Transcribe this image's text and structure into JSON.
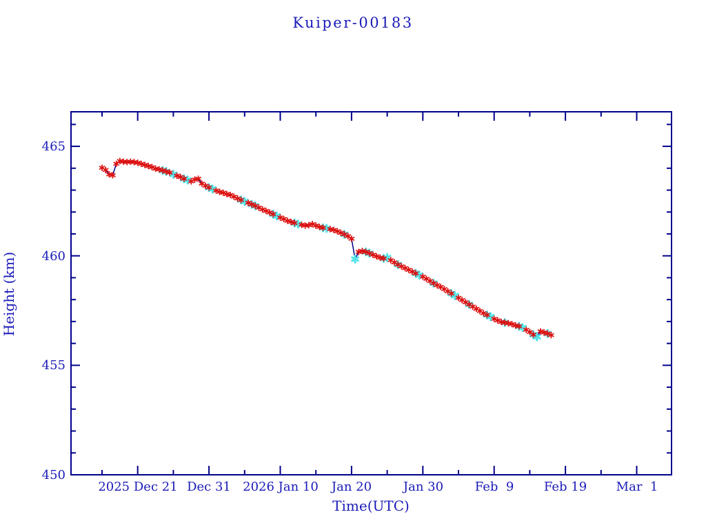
{
  "title": "Kuiper-00183",
  "colors": {
    "text_blue": "#1a1ab8",
    "frame_navy": "#00008b",
    "line_navy": "#00008b",
    "marker_red": "#dd1111",
    "marker_cyan": "#52e4e8",
    "background": "#ffffff"
  },
  "chart_data": {
    "type": "line",
    "title": "Kuiper-00183",
    "xlabel": "Time(UTC)",
    "ylabel": "Height (km)",
    "grid": false,
    "legend": "none",
    "x_unit": "days since 2025-12-16 00:00 UTC",
    "x_tick_labels": [
      "2025 Dec 21",
      "Dec 31",
      "2026 Jan 10",
      "Jan 20",
      "Jan 30",
      "Feb  9",
      "Feb 19",
      "Mar  1"
    ],
    "x_major_tick_days": [
      5,
      15,
      25,
      35,
      45,
      55,
      65,
      75
    ],
    "x_minor_tick_days": [
      0,
      10,
      20,
      30,
      40,
      50,
      60,
      70
    ],
    "xlim_days": [
      -4.35,
      79.9
    ],
    "y_tick_labels": [
      "465",
      "460",
      "455",
      "450"
    ],
    "y_major_ticks": [
      465,
      460,
      455,
      450
    ],
    "y_minor_step": 1,
    "ylim": [
      450,
      466.58
    ],
    "marker_legend": {
      "r": "red asterisk (fitted/observed)",
      "c": "cyan marker only",
      "b": "cyan under red"
    },
    "points_format": "[days_since_2025-12-16_UTC, height_km, marker]",
    "points": [
      [
        0.0,
        464.02,
        "r"
      ],
      [
        0.5,
        463.92,
        "r"
      ],
      [
        1.0,
        463.72,
        "r"
      ],
      [
        1.5,
        463.68,
        "r"
      ],
      [
        2.0,
        464.2,
        "r"
      ],
      [
        2.5,
        464.33,
        "r"
      ],
      [
        3.0,
        464.3,
        "r"
      ],
      [
        3.5,
        464.28,
        "r"
      ],
      [
        4.0,
        464.3,
        "r"
      ],
      [
        4.5,
        464.28,
        "r"
      ],
      [
        5.0,
        464.25,
        "r"
      ],
      [
        5.5,
        464.2,
        "r"
      ],
      [
        6.0,
        464.15,
        "r"
      ],
      [
        6.5,
        464.1,
        "r"
      ],
      [
        7.0,
        464.05,
        "r"
      ],
      [
        7.5,
        463.98,
        "r"
      ],
      [
        8.0,
        463.95,
        "r"
      ],
      [
        8.5,
        463.9,
        "b"
      ],
      [
        9.0,
        463.85,
        "b"
      ],
      [
        9.5,
        463.8,
        "r"
      ],
      [
        10.0,
        463.72,
        "c"
      ],
      [
        10.5,
        463.66,
        "r"
      ],
      [
        11.0,
        463.6,
        "r"
      ],
      [
        11.5,
        463.52,
        "b"
      ],
      [
        12.0,
        463.46,
        "c"
      ],
      [
        12.5,
        463.4,
        "r"
      ],
      [
        13.0,
        463.48,
        "r"
      ],
      [
        13.5,
        463.52,
        "r"
      ],
      [
        14.0,
        463.3,
        "r"
      ],
      [
        14.5,
        463.2,
        "r"
      ],
      [
        15.0,
        463.12,
        "b"
      ],
      [
        15.5,
        463.05,
        "c"
      ],
      [
        16.0,
        462.98,
        "r"
      ],
      [
        16.5,
        462.92,
        "r"
      ],
      [
        17.0,
        462.88,
        "r"
      ],
      [
        17.5,
        462.82,
        "r"
      ],
      [
        18.0,
        462.78,
        "r"
      ],
      [
        18.5,
        462.7,
        "r"
      ],
      [
        19.0,
        462.62,
        "r"
      ],
      [
        19.5,
        462.55,
        "b"
      ],
      [
        20.0,
        462.48,
        "c"
      ],
      [
        20.5,
        462.42,
        "r"
      ],
      [
        21.0,
        462.35,
        "b"
      ],
      [
        21.5,
        462.28,
        "b"
      ],
      [
        22.0,
        462.2,
        "r"
      ],
      [
        22.5,
        462.12,
        "r"
      ],
      [
        23.0,
        462.05,
        "r"
      ],
      [
        23.5,
        461.98,
        "r"
      ],
      [
        24.0,
        461.9,
        "b"
      ],
      [
        24.5,
        461.82,
        "c"
      ],
      [
        25.0,
        461.75,
        "r"
      ],
      [
        25.5,
        461.68,
        "r"
      ],
      [
        26.0,
        461.6,
        "r"
      ],
      [
        26.5,
        461.55,
        "r"
      ],
      [
        27.0,
        461.5,
        "b"
      ],
      [
        27.5,
        461.45,
        "c"
      ],
      [
        28.0,
        461.42,
        "r"
      ],
      [
        28.5,
        461.38,
        "r"
      ],
      [
        29.0,
        461.4,
        "r"
      ],
      [
        29.5,
        461.45,
        "r"
      ],
      [
        30.0,
        461.38,
        "r"
      ],
      [
        30.5,
        461.32,
        "r"
      ],
      [
        31.0,
        461.28,
        "b"
      ],
      [
        31.5,
        461.25,
        "c"
      ],
      [
        32.0,
        461.22,
        "r"
      ],
      [
        32.5,
        461.18,
        "r"
      ],
      [
        33.0,
        461.12,
        "r"
      ],
      [
        33.5,
        461.05,
        "r"
      ],
      [
        34.0,
        460.98,
        "b"
      ],
      [
        34.5,
        460.9,
        "r"
      ],
      [
        35.0,
        460.78,
        "r"
      ],
      [
        35.5,
        459.85,
        "c"
      ],
      [
        36.0,
        460.18,
        "r"
      ],
      [
        36.5,
        460.22,
        "r"
      ],
      [
        37.0,
        460.18,
        "b"
      ],
      [
        37.5,
        460.12,
        "b"
      ],
      [
        38.0,
        460.05,
        "r"
      ],
      [
        38.5,
        459.98,
        "r"
      ],
      [
        39.0,
        459.92,
        "r"
      ],
      [
        39.5,
        459.88,
        "b"
      ],
      [
        40.0,
        459.92,
        "c"
      ],
      [
        40.5,
        459.8,
        "r"
      ],
      [
        41.0,
        459.7,
        "r"
      ],
      [
        41.5,
        459.6,
        "b"
      ],
      [
        42.0,
        459.52,
        "r"
      ],
      [
        42.5,
        459.44,
        "r"
      ],
      [
        43.0,
        459.36,
        "r"
      ],
      [
        43.5,
        459.28,
        "r"
      ],
      [
        44.0,
        459.2,
        "b"
      ],
      [
        44.5,
        459.12,
        "c"
      ],
      [
        45.0,
        459.05,
        "r"
      ],
      [
        45.5,
        458.95,
        "r"
      ],
      [
        46.0,
        458.85,
        "r"
      ],
      [
        46.5,
        458.75,
        "b"
      ],
      [
        47.0,
        458.66,
        "r"
      ],
      [
        47.5,
        458.58,
        "r"
      ],
      [
        48.0,
        458.48,
        "r"
      ],
      [
        48.5,
        458.38,
        "r"
      ],
      [
        49.0,
        458.28,
        "b"
      ],
      [
        49.5,
        458.18,
        "c"
      ],
      [
        50.0,
        458.08,
        "r"
      ],
      [
        50.5,
        457.98,
        "r"
      ],
      [
        51.0,
        457.88,
        "r"
      ],
      [
        51.5,
        457.78,
        "b"
      ],
      [
        52.0,
        457.68,
        "r"
      ],
      [
        52.5,
        457.58,
        "r"
      ],
      [
        53.0,
        457.48,
        "r"
      ],
      [
        53.5,
        457.38,
        "r"
      ],
      [
        54.0,
        457.3,
        "b"
      ],
      [
        54.5,
        457.22,
        "c"
      ],
      [
        55.0,
        457.12,
        "r"
      ],
      [
        55.5,
        457.05,
        "r"
      ],
      [
        56.0,
        456.98,
        "r"
      ],
      [
        56.5,
        456.95,
        "b"
      ],
      [
        57.0,
        456.92,
        "r"
      ],
      [
        57.5,
        456.88,
        "r"
      ],
      [
        58.0,
        456.82,
        "r"
      ],
      [
        58.5,
        456.78,
        "b"
      ],
      [
        59.0,
        456.72,
        "c"
      ],
      [
        59.5,
        456.62,
        "r"
      ],
      [
        60.0,
        456.52,
        "r"
      ],
      [
        60.5,
        456.4,
        "b"
      ],
      [
        61.0,
        456.3,
        "c"
      ],
      [
        61.5,
        456.55,
        "r"
      ],
      [
        62.0,
        456.5,
        "r"
      ],
      [
        62.5,
        456.45,
        "b"
      ],
      [
        63.0,
        456.38,
        "r"
      ]
    ]
  }
}
